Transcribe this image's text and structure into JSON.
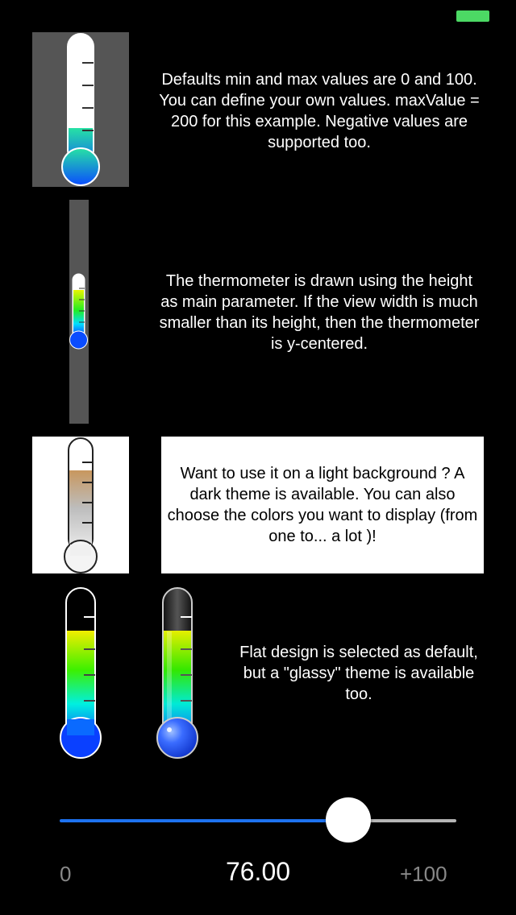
{
  "status_bar": {
    "battery_color": "#4cd964"
  },
  "examples": [
    {
      "description": "Defaults min and max values are 0 and 100. You can define your own values. maxValue = 200 for this example. Negative values are supported too.",
      "min": 0,
      "max": 200,
      "value": 76
    },
    {
      "description": "The thermometer is drawn using the height as main parameter. If the view width is much smaller than its height, then the thermometer is y-centered.",
      "min": 0,
      "max": 100,
      "value": 76
    },
    {
      "description": "Want to use it on a light background ? A dark theme is available. You can also choose the colors you want to display (from one to... a lot )!",
      "min": 0,
      "max": 100,
      "value": 76,
      "theme": "dark"
    },
    {
      "description": "Flat design is selected as default, but a \"glassy\" theme is available too.",
      "min": 0,
      "max": 100,
      "value": 76,
      "themes": [
        "flat",
        "glassy"
      ]
    }
  ],
  "slider": {
    "min_label": "0",
    "max_label": "+100",
    "value_label": "76.00",
    "value": 76,
    "min": 0,
    "max": 100,
    "fill_color": "#1d72f0",
    "track_color": "#b5b5b5"
  }
}
